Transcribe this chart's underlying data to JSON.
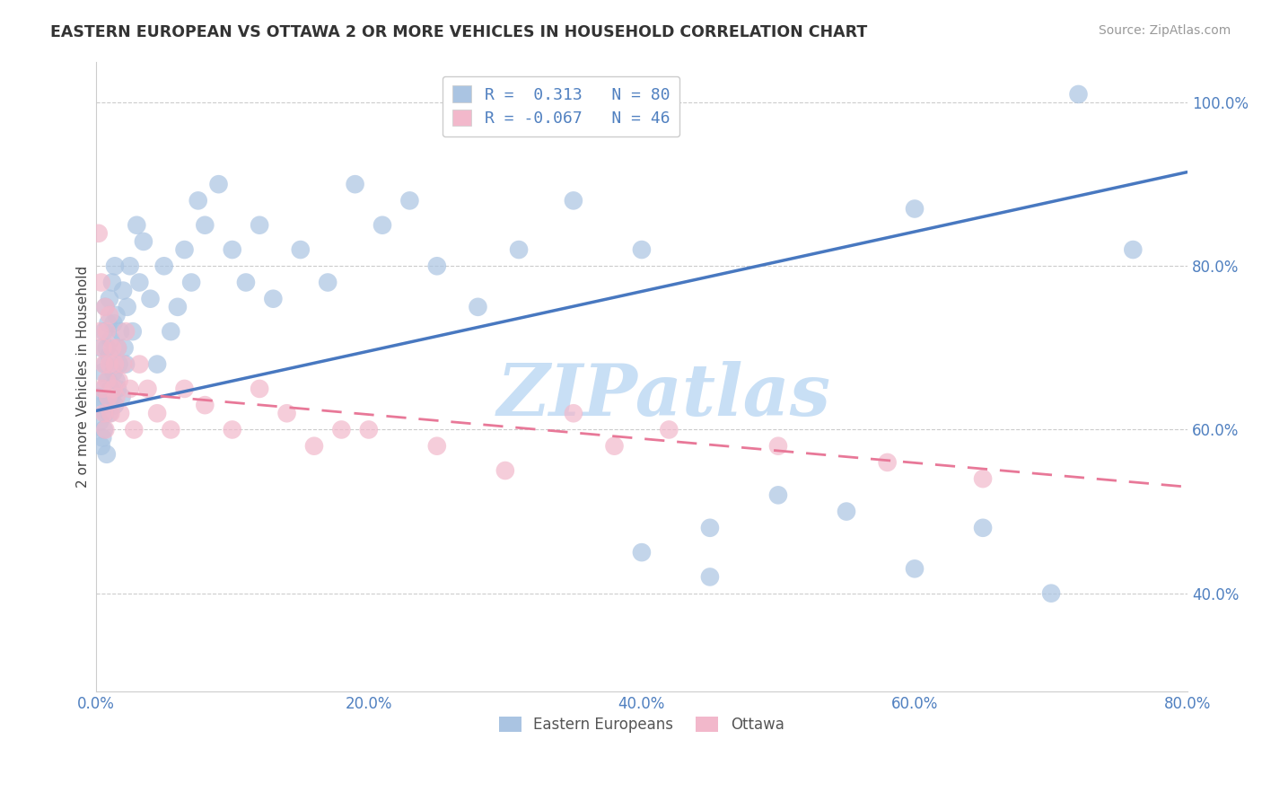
{
  "title": "EASTERN EUROPEAN VS OTTAWA 2 OR MORE VEHICLES IN HOUSEHOLD CORRELATION CHART",
  "source_text": "Source: ZipAtlas.com",
  "ylabel": "2 or more Vehicles in Household",
  "xlim": [
    0.0,
    0.8
  ],
  "ylim": [
    0.28,
    1.05
  ],
  "xtick_labels": [
    "0.0%",
    "20.0%",
    "40.0%",
    "60.0%",
    "80.0%"
  ],
  "xtick_vals": [
    0.0,
    0.2,
    0.4,
    0.6,
    0.8
  ],
  "ytick_labels": [
    "40.0%",
    "60.0%",
    "80.0%",
    "100.0%"
  ],
  "ytick_vals": [
    0.4,
    0.6,
    0.8,
    1.0
  ],
  "blue_R": 0.313,
  "blue_N": 80,
  "pink_R": -0.067,
  "pink_N": 46,
  "blue_color": "#aac4e2",
  "pink_color": "#f2b8cb",
  "blue_line_color": "#4878c0",
  "pink_line_color": "#e87898",
  "tick_color": "#5080c0",
  "watermark": "ZIPatlas",
  "watermark_color": "#c8dff5",
  "legend_label_blue": "Eastern Europeans",
  "legend_label_pink": "Ottawa",
  "blue_line_x0": 0.0,
  "blue_line_y0": 0.623,
  "blue_line_x1": 0.8,
  "blue_line_y1": 0.915,
  "pink_line_x0": 0.0,
  "pink_line_y0": 0.648,
  "pink_line_x1": 0.8,
  "pink_line_y1": 0.53,
  "blue_x": [
    0.002,
    0.003,
    0.004,
    0.004,
    0.005,
    0.005,
    0.005,
    0.006,
    0.006,
    0.006,
    0.007,
    0.007,
    0.007,
    0.008,
    0.008,
    0.008,
    0.009,
    0.009,
    0.01,
    0.01,
    0.01,
    0.011,
    0.011,
    0.012,
    0.012,
    0.013,
    0.013,
    0.014,
    0.014,
    0.015,
    0.015,
    0.016,
    0.016,
    0.017,
    0.018,
    0.019,
    0.02,
    0.021,
    0.022,
    0.023,
    0.025,
    0.027,
    0.03,
    0.032,
    0.035,
    0.04,
    0.045,
    0.05,
    0.055,
    0.06,
    0.065,
    0.07,
    0.075,
    0.08,
    0.09,
    0.1,
    0.11,
    0.12,
    0.13,
    0.15,
    0.17,
    0.19,
    0.21,
    0.23,
    0.25,
    0.28,
    0.31,
    0.35,
    0.4,
    0.45,
    0.5,
    0.55,
    0.6,
    0.65,
    0.7,
    0.4,
    0.45,
    0.6,
    0.72,
    0.76
  ],
  "blue_y": [
    0.64,
    0.61,
    0.58,
    0.7,
    0.63,
    0.67,
    0.59,
    0.65,
    0.72,
    0.6,
    0.68,
    0.62,
    0.75,
    0.64,
    0.7,
    0.57,
    0.66,
    0.73,
    0.62,
    0.69,
    0.76,
    0.65,
    0.71,
    0.64,
    0.78,
    0.67,
    0.73,
    0.63,
    0.8,
    0.66,
    0.74,
    0.7,
    0.65,
    0.68,
    0.72,
    0.64,
    0.77,
    0.7,
    0.68,
    0.75,
    0.8,
    0.72,
    0.85,
    0.78,
    0.83,
    0.76,
    0.68,
    0.8,
    0.72,
    0.75,
    0.82,
    0.78,
    0.88,
    0.85,
    0.9,
    0.82,
    0.78,
    0.85,
    0.76,
    0.82,
    0.78,
    0.9,
    0.85,
    0.88,
    0.8,
    0.75,
    0.82,
    0.88,
    0.45,
    0.48,
    0.52,
    0.5,
    0.43,
    0.48,
    0.4,
    0.82,
    0.42,
    0.87,
    1.01,
    0.82
  ],
  "pink_x": [
    0.002,
    0.003,
    0.004,
    0.005,
    0.005,
    0.006,
    0.006,
    0.007,
    0.007,
    0.008,
    0.008,
    0.009,
    0.01,
    0.01,
    0.011,
    0.012,
    0.013,
    0.014,
    0.015,
    0.016,
    0.017,
    0.018,
    0.02,
    0.022,
    0.025,
    0.028,
    0.032,
    0.038,
    0.045,
    0.055,
    0.065,
    0.08,
    0.1,
    0.12,
    0.14,
    0.16,
    0.18,
    0.2,
    0.25,
    0.3,
    0.35,
    0.38,
    0.42,
    0.5,
    0.58,
    0.65
  ],
  "pink_y": [
    0.84,
    0.72,
    0.78,
    0.65,
    0.7,
    0.68,
    0.62,
    0.75,
    0.6,
    0.66,
    0.72,
    0.64,
    0.68,
    0.74,
    0.62,
    0.7,
    0.65,
    0.68,
    0.64,
    0.7,
    0.66,
    0.62,
    0.68,
    0.72,
    0.65,
    0.6,
    0.68,
    0.65,
    0.62,
    0.6,
    0.65,
    0.63,
    0.6,
    0.65,
    0.62,
    0.58,
    0.6,
    0.6,
    0.58,
    0.55,
    0.62,
    0.58,
    0.6,
    0.58,
    0.56,
    0.54
  ]
}
